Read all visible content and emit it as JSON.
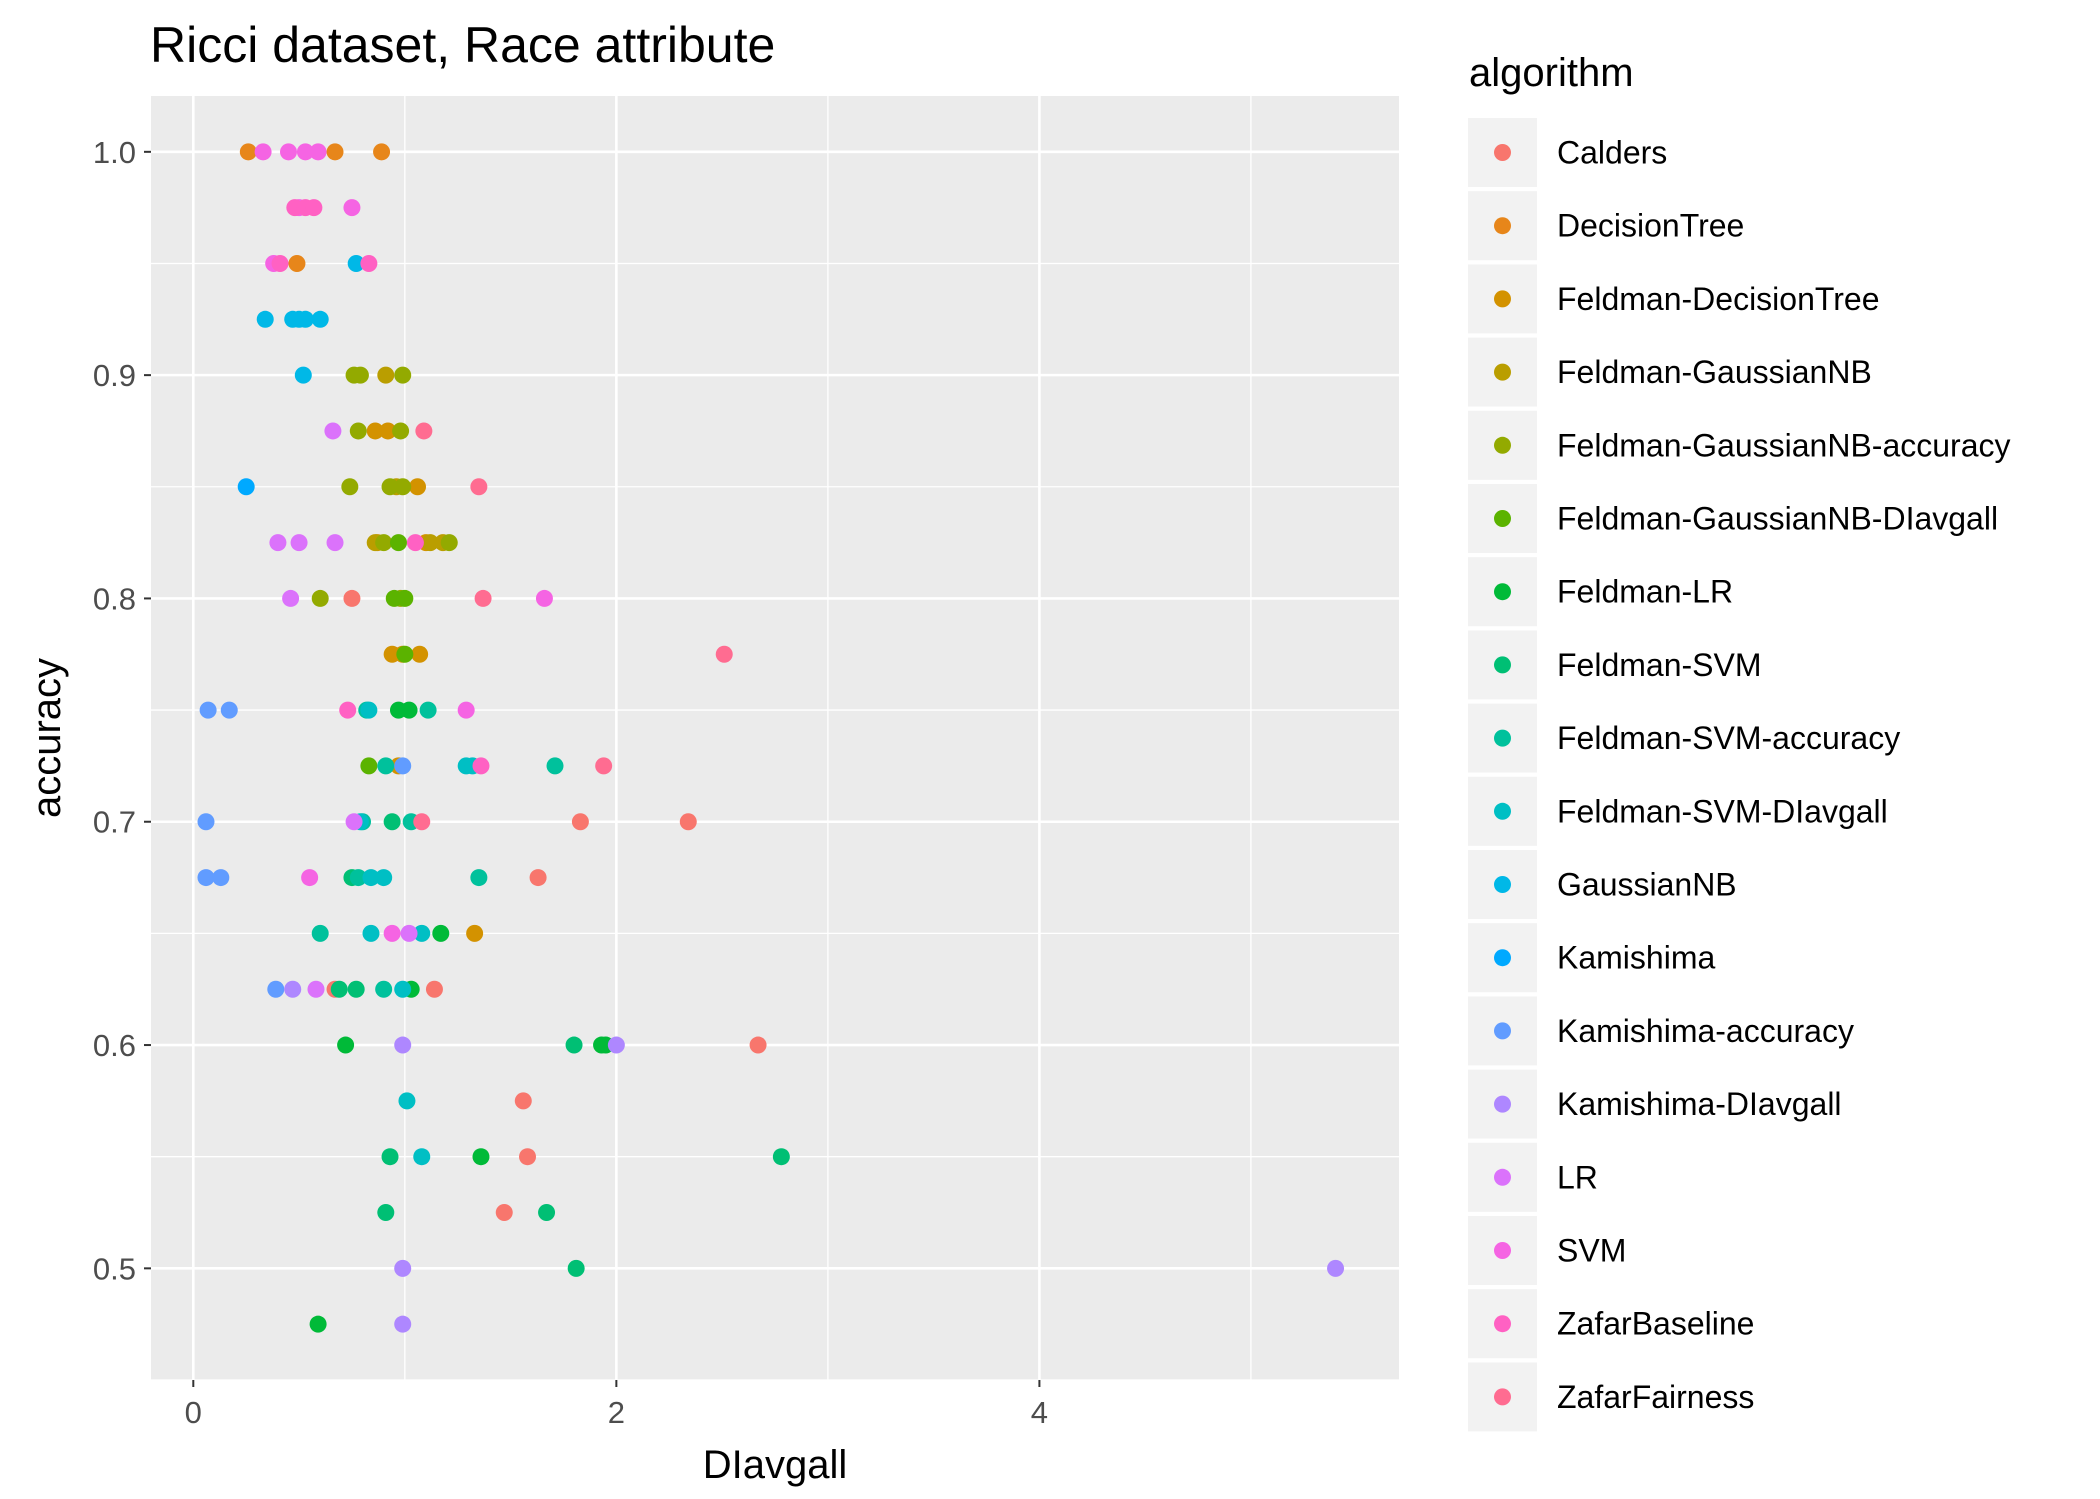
{
  "chart_data": {
    "type": "scatter",
    "title": "Ricci dataset, Race attribute",
    "xlabel": "DIavgall",
    "ylabel": "accuracy",
    "xlim": [
      -0.2,
      5.7
    ],
    "ylim": [
      0.45,
      1.025
    ],
    "xticks": [
      0,
      2,
      4
    ],
    "yticks": [
      0.5,
      0.6,
      0.7,
      0.8,
      0.9,
      1.0
    ],
    "ytick_labels": [
      "0.5",
      "0.6",
      "0.7",
      "0.8",
      "0.9",
      "1.0"
    ],
    "grid": true,
    "legend_title": "algorithm",
    "legend_position": "right",
    "series": [
      {
        "name": "Calders",
        "color": "#F8766D",
        "points": [
          [
            0.67,
            0.625
          ],
          [
            0.75,
            0.8
          ],
          [
            1.14,
            0.625
          ],
          [
            1.47,
            0.525
          ],
          [
            1.56,
            0.575
          ],
          [
            1.58,
            0.55
          ],
          [
            1.63,
            0.675
          ],
          [
            1.83,
            0.7
          ],
          [
            2.34,
            0.7
          ],
          [
            2.67,
            0.6
          ]
        ]
      },
      {
        "name": "DecisionTree",
        "color": "#E7861A",
        "points": [
          [
            0.26,
            1.0
          ],
          [
            0.67,
            1.0
          ],
          [
            0.89,
            1.0
          ],
          [
            0.49,
            0.95
          ]
        ]
      },
      {
        "name": "Feldman-DecisionTree",
        "color": "#D39200",
        "points": [
          [
            0.86,
            0.875
          ],
          [
            0.92,
            0.875
          ],
          [
            1.06,
            0.85
          ],
          [
            0.87,
            0.825
          ],
          [
            1.1,
            0.825
          ],
          [
            0.94,
            0.775
          ],
          [
            0.99,
            0.775
          ],
          [
            1.07,
            0.775
          ],
          [
            0.97,
            0.725
          ],
          [
            1.33,
            0.65
          ]
        ]
      },
      {
        "name": "Feldman-GaussianNB",
        "color": "#BA9E00",
        "points": [
          [
            0.91,
            0.9
          ],
          [
            0.86,
            0.825
          ],
          [
            1.12,
            0.825
          ],
          [
            1.18,
            0.825
          ],
          [
            0.96,
            0.85
          ]
        ]
      },
      {
        "name": "Feldman-GaussianNB-accuracy",
        "color": "#93AA00",
        "points": [
          [
            0.76,
            0.9
          ],
          [
            0.79,
            0.9
          ],
          [
            0.99,
            0.9
          ],
          [
            0.78,
            0.875
          ],
          [
            0.98,
            0.875
          ],
          [
            0.74,
            0.85
          ],
          [
            0.93,
            0.85
          ],
          [
            0.99,
            0.85
          ],
          [
            0.9,
            0.825
          ],
          [
            1.21,
            0.825
          ],
          [
            0.6,
            0.8
          ],
          [
            0.98,
            0.8
          ]
        ]
      },
      {
        "name": "Feldman-GaussianNB-DIavgall",
        "color": "#5BB300",
        "points": [
          [
            0.97,
            0.825
          ],
          [
            0.95,
            0.8
          ],
          [
            1.0,
            0.8
          ],
          [
            1.0,
            0.775
          ],
          [
            0.83,
            0.725
          ]
        ]
      },
      {
        "name": "Feldman-LR",
        "color": "#00BA38",
        "points": [
          [
            0.97,
            0.75
          ],
          [
            1.02,
            0.75
          ],
          [
            1.17,
            0.65
          ],
          [
            1.03,
            0.625
          ],
          [
            0.72,
            0.6
          ],
          [
            1.93,
            0.6
          ],
          [
            1.95,
            0.6
          ],
          [
            1.36,
            0.55
          ],
          [
            0.59,
            0.475
          ]
        ]
      },
      {
        "name": "Feldman-SVM",
        "color": "#00BF74",
        "points": [
          [
            0.94,
            0.7
          ],
          [
            0.75,
            0.675
          ],
          [
            0.69,
            0.625
          ],
          [
            0.77,
            0.625
          ],
          [
            1.8,
            0.6
          ],
          [
            2.78,
            0.55
          ],
          [
            0.93,
            0.55
          ],
          [
            0.91,
            0.525
          ],
          [
            1.67,
            0.525
          ],
          [
            1.81,
            0.5
          ]
        ]
      },
      {
        "name": "Feldman-SVM-accuracy",
        "color": "#00C19C",
        "points": [
          [
            0.82,
            0.75
          ],
          [
            1.11,
            0.75
          ],
          [
            0.91,
            0.725
          ],
          [
            1.71,
            0.725
          ],
          [
            0.8,
            0.7
          ],
          [
            1.03,
            0.7
          ],
          [
            0.78,
            0.675
          ],
          [
            1.35,
            0.675
          ],
          [
            0.6,
            0.65
          ],
          [
            0.9,
            0.625
          ]
        ]
      },
      {
        "name": "Feldman-SVM-DIavgall",
        "color": "#00BFC4",
        "points": [
          [
            0.83,
            0.75
          ],
          [
            1.29,
            0.725
          ],
          [
            1.32,
            0.725
          ],
          [
            0.79,
            0.7
          ],
          [
            0.84,
            0.675
          ],
          [
            0.9,
            0.675
          ],
          [
            0.84,
            0.65
          ],
          [
            1.08,
            0.65
          ],
          [
            0.99,
            0.625
          ],
          [
            1.01,
            0.575
          ],
          [
            1.08,
            0.55
          ]
        ]
      },
      {
        "name": "GaussianNB",
        "color": "#00B8E7",
        "points": [
          [
            0.34,
            0.925
          ],
          [
            0.47,
            0.925
          ],
          [
            0.5,
            0.925
          ],
          [
            0.53,
            0.925
          ],
          [
            0.6,
            0.925
          ],
          [
            0.52,
            0.9
          ],
          [
            0.77,
            0.95
          ]
        ]
      },
      {
        "name": "Kamishima",
        "color": "#00A9FF",
        "points": [
          [
            0.25,
            0.85
          ]
        ]
      },
      {
        "name": "Kamishima-accuracy",
        "color": "#619CFF",
        "points": [
          [
            0.07,
            0.75
          ],
          [
            0.17,
            0.75
          ],
          [
            0.06,
            0.7
          ],
          [
            0.06,
            0.675
          ],
          [
            0.13,
            0.675
          ],
          [
            0.39,
            0.625
          ],
          [
            0.99,
            0.725
          ]
        ]
      },
      {
        "name": "Kamishima-DIavgall",
        "color": "#AE87FF",
        "points": [
          [
            0.47,
            0.625
          ],
          [
            0.99,
            0.6
          ],
          [
            2.0,
            0.6
          ],
          [
            0.99,
            0.5
          ],
          [
            5.4,
            0.5
          ],
          [
            0.99,
            0.475
          ]
        ]
      },
      {
        "name": "LR",
        "color": "#DB72FB",
        "points": [
          [
            0.66,
            0.875
          ],
          [
            0.4,
            0.825
          ],
          [
            0.5,
            0.825
          ],
          [
            0.67,
            0.825
          ],
          [
            0.46,
            0.8
          ],
          [
            0.76,
            0.7
          ],
          [
            0.58,
            0.625
          ],
          [
            1.02,
            0.65
          ]
        ]
      },
      {
        "name": "SVM",
        "color": "#F564E3",
        "points": [
          [
            0.33,
            1.0
          ],
          [
            0.45,
            1.0
          ],
          [
            0.53,
            1.0
          ],
          [
            0.59,
            1.0
          ],
          [
            0.5,
            0.975
          ],
          [
            0.75,
            0.975
          ],
          [
            0.38,
            0.95
          ],
          [
            1.66,
            0.8
          ],
          [
            1.29,
            0.75
          ],
          [
            0.55,
            0.675
          ],
          [
            0.94,
            0.65
          ]
        ]
      },
      {
        "name": "ZafarBaseline",
        "color": "#FF61C3",
        "points": [
          [
            0.48,
            0.975
          ],
          [
            0.53,
            0.975
          ],
          [
            0.57,
            0.975
          ],
          [
            0.41,
            0.95
          ],
          [
            0.83,
            0.95
          ],
          [
            0.73,
            0.75
          ],
          [
            1.36,
            0.725
          ],
          [
            1.05,
            0.825
          ]
        ]
      },
      {
        "name": "ZafarFairness",
        "color": "#FF6C91",
        "points": [
          [
            1.09,
            0.875
          ],
          [
            1.35,
            0.85
          ],
          [
            1.37,
            0.8
          ],
          [
            2.51,
            0.775
          ],
          [
            1.94,
            0.725
          ],
          [
            1.08,
            0.7
          ]
        ]
      }
    ]
  }
}
